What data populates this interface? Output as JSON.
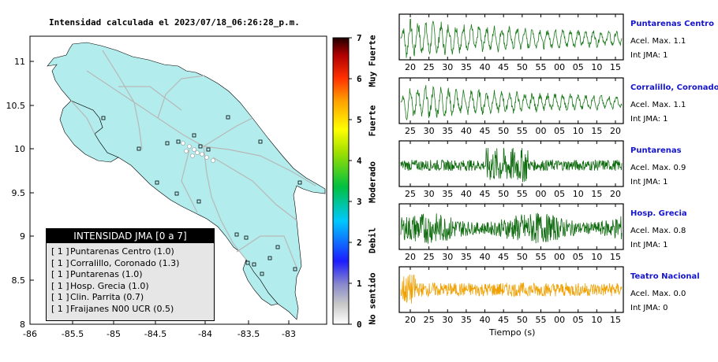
{
  "map": {
    "title": "Intensidad calculada el 2023/07/18_06:26:28_p.m.",
    "x_ticks": [
      "-86",
      "-85.5",
      "-85",
      "-84.5",
      "-84",
      "-83.5",
      "-83"
    ],
    "y_ticks": [
      "11",
      "10.5",
      "10",
      "9.5",
      "9",
      "8.5",
      "8"
    ],
    "land_color": "#b2ecec",
    "border_color": "#000000"
  },
  "legend": {
    "title": "INTENSIDAD JMA [0 a 7]",
    "items": [
      {
        "tag": "[ 1 ]",
        "label": "Puntarenas Centro (1.0)"
      },
      {
        "tag": "[ 1 ]",
        "label": "Corralillo, Coronado (1.3)"
      },
      {
        "tag": "[ 1 ]",
        "label": "Puntarenas (1.0)"
      },
      {
        "tag": "[ 1 ]",
        "label": "Hosp. Grecia (1.0)"
      },
      {
        "tag": "[ 1 ]",
        "label": "Clin. Parrita (0.7)"
      },
      {
        "tag": "[ 1 ]",
        "label": "Fraijanes N00 UCR (0.5)"
      }
    ]
  },
  "scale": {
    "ticks": [
      "7",
      "6",
      "5",
      "4",
      "3",
      "2",
      "1",
      "0"
    ],
    "labels": [
      "Muy Fuerte",
      "Fuerte",
      "Moderado",
      "Debil",
      "No sentido"
    ]
  },
  "waveforms": {
    "x_title": "Tiempo (s)",
    "panels": [
      {
        "name": "Puntarenas Centro",
        "accel": "Acel. Max. 1.1",
        "jma": "Int JMA: 1",
        "color": "#1c7a1c",
        "ticks": [
          "20",
          "25",
          "30",
          "35",
          "40",
          "45",
          "50",
          "55",
          "00",
          "05",
          "10",
          "15"
        ]
      },
      {
        "name": "Corralillo, Coronado",
        "accel": "Acel. Max. 1.1",
        "jma": "Int JMA: 1",
        "color": "#1c7a1c",
        "ticks": [
          "25",
          "30",
          "35",
          "40",
          "45",
          "50",
          "55",
          "00",
          "05",
          "10",
          "15",
          "20"
        ]
      },
      {
        "name": "Puntarenas",
        "accel": "Acel. Max. 0.9",
        "jma": "Int JMA: 1",
        "color": "#0f6b0f",
        "ticks": [
          "25",
          "30",
          "35",
          "40",
          "45",
          "50",
          "55",
          "00",
          "05",
          "10",
          "15",
          "20"
        ]
      },
      {
        "name": "Hosp. Grecia",
        "accel": "Acel. Max. 0.8",
        "jma": "Int JMA: 1",
        "color": "#0f6b0f",
        "ticks": [
          "20",
          "25",
          "30",
          "35",
          "40",
          "45",
          "50",
          "55",
          "00",
          "05",
          "10",
          "15"
        ]
      },
      {
        "name": "Teatro Nacional",
        "accel": "Acel. Max. 0.0",
        "jma": "Int JMA: 0",
        "color": "#f0a000",
        "ticks": [
          "20",
          "25",
          "30",
          "35",
          "40",
          "45",
          "50",
          "55",
          "00",
          "05",
          "10",
          "15"
        ]
      }
    ]
  }
}
